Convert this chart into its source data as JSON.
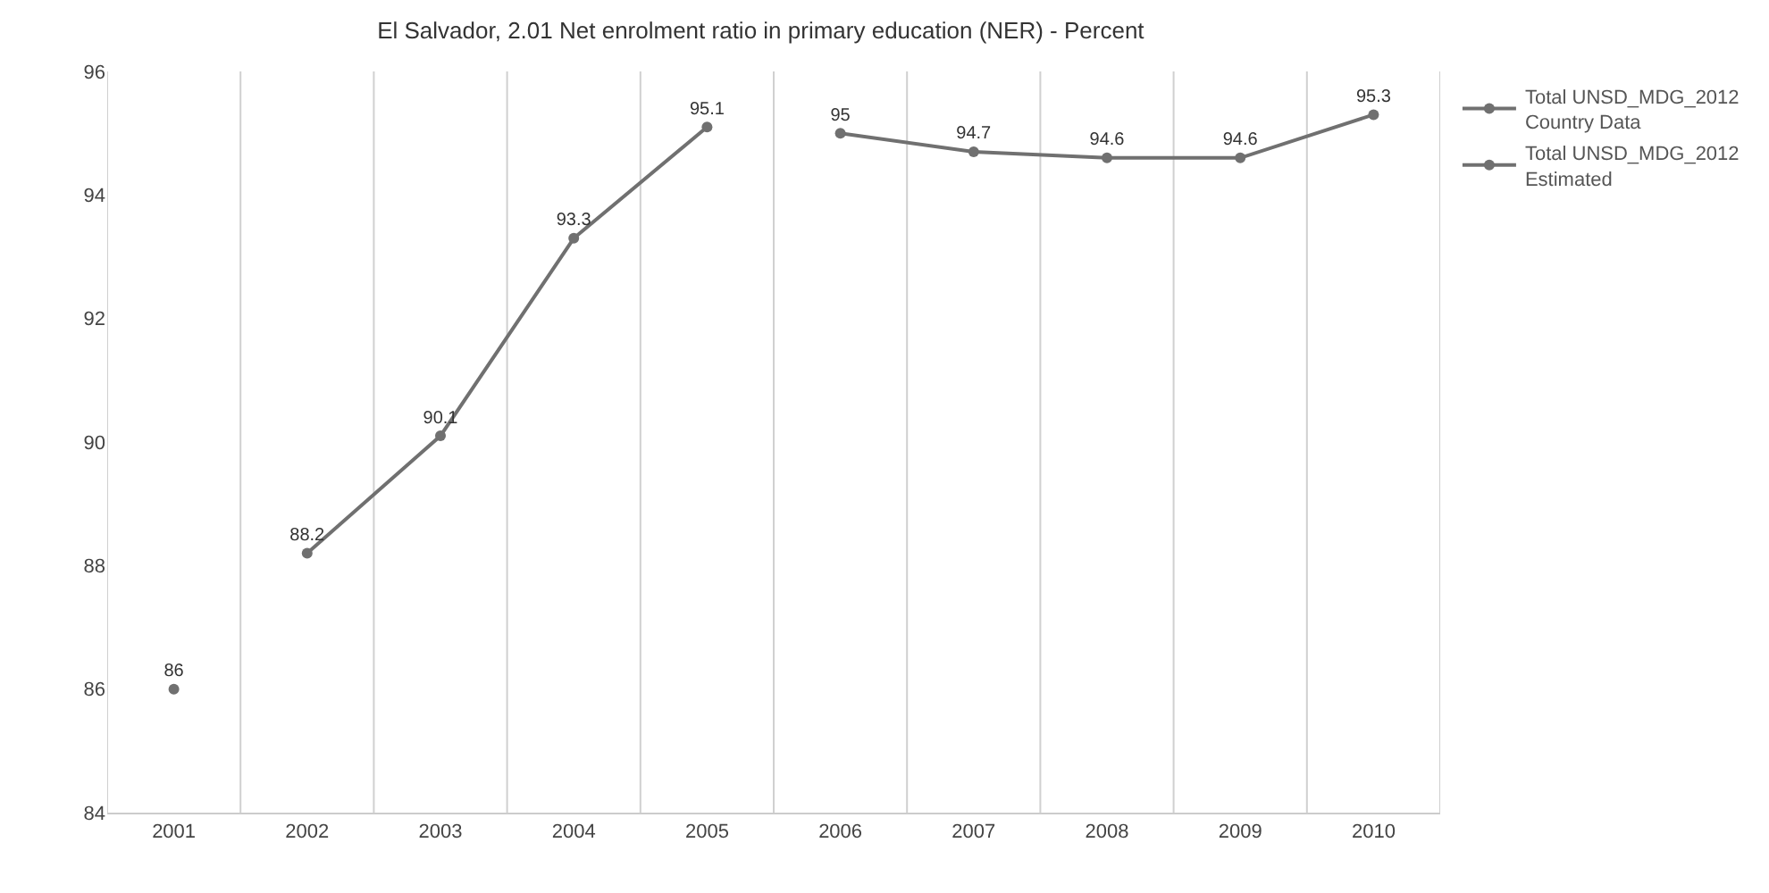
{
  "chart_data": {
    "type": "line",
    "title": "El Salvador, 2.01 Net enrolment ratio in primary education (NER) - Percent",
    "categories": [
      "2001",
      "2002",
      "2003",
      "2004",
      "2005",
      "2006",
      "2007",
      "2008",
      "2009",
      "2010"
    ],
    "series": [
      {
        "name": "Total UNSD_MDG_2012 Country Data",
        "color": "#707070",
        "values": [
          null,
          88.2,
          90.1,
          93.3,
          95.1,
          null,
          null,
          null,
          null,
          null
        ]
      },
      {
        "name": "Total UNSD_MDG_2012 Estimated",
        "color": "#707070",
        "values": [
          86,
          null,
          null,
          null,
          null,
          95,
          94.7,
          94.6,
          94.6,
          95.3
        ]
      }
    ],
    "ylim": [
      84,
      96
    ],
    "yticks": [
      84,
      86,
      88,
      90,
      92,
      94,
      96
    ],
    "data_labels": true,
    "grid": "x",
    "legend": "top right",
    "marker": "circle",
    "line_style": "solid"
  }
}
